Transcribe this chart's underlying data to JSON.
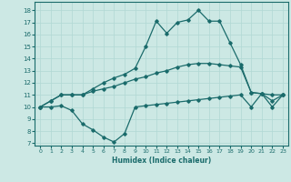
{
  "xlabel": "Humidex (Indice chaleur)",
  "bg_color": "#cce8e4",
  "line_color": "#1a6b6b",
  "grid_color": "#b0d8d4",
  "xlim": [
    -0.5,
    23.5
  ],
  "ylim": [
    6.8,
    18.7
  ],
  "yticks": [
    7,
    8,
    9,
    10,
    11,
    12,
    13,
    14,
    15,
    16,
    17,
    18
  ],
  "xticks": [
    0,
    1,
    2,
    3,
    4,
    5,
    6,
    7,
    8,
    9,
    10,
    11,
    12,
    13,
    14,
    15,
    16,
    17,
    18,
    19,
    20,
    21,
    22,
    23
  ],
  "line1_x": [
    0,
    1,
    2,
    3,
    4,
    5,
    6,
    7,
    8,
    9,
    10,
    11,
    12,
    13,
    14,
    15,
    16,
    17,
    18,
    19,
    20,
    21,
    22,
    23
  ],
  "line1_y": [
    10.0,
    10.0,
    10.1,
    9.7,
    8.6,
    8.1,
    7.5,
    7.1,
    7.8,
    10.0,
    10.1,
    10.2,
    10.3,
    10.4,
    10.5,
    10.6,
    10.7,
    10.8,
    10.9,
    11.0,
    10.0,
    11.1,
    11.0,
    11.0
  ],
  "line2_x": [
    0,
    1,
    2,
    3,
    4,
    5,
    6,
    7,
    8,
    9,
    10,
    11,
    12,
    13,
    14,
    15,
    16,
    17,
    18,
    19,
    20,
    21,
    22,
    23
  ],
  "line2_y": [
    10.0,
    10.5,
    11.0,
    11.0,
    11.0,
    11.3,
    11.5,
    11.7,
    12.0,
    12.3,
    12.5,
    12.8,
    13.0,
    13.3,
    13.5,
    13.6,
    13.6,
    13.5,
    13.4,
    13.3,
    11.2,
    11.1,
    10.5,
    11.0
  ],
  "line3_x": [
    0,
    1,
    2,
    3,
    4,
    5,
    6,
    7,
    8,
    9,
    10,
    11,
    12,
    13,
    14,
    15,
    16,
    17,
    18,
    19,
    20,
    21,
    22,
    23
  ],
  "line3_y": [
    10.0,
    10.5,
    11.0,
    11.0,
    11.0,
    11.5,
    12.0,
    12.4,
    12.7,
    13.2,
    15.0,
    17.1,
    16.1,
    17.0,
    17.2,
    18.0,
    17.1,
    17.1,
    15.3,
    13.5,
    11.2,
    11.1,
    10.0,
    11.0
  ],
  "marker": "D",
  "markersize": 1.8,
  "linewidth": 0.9
}
